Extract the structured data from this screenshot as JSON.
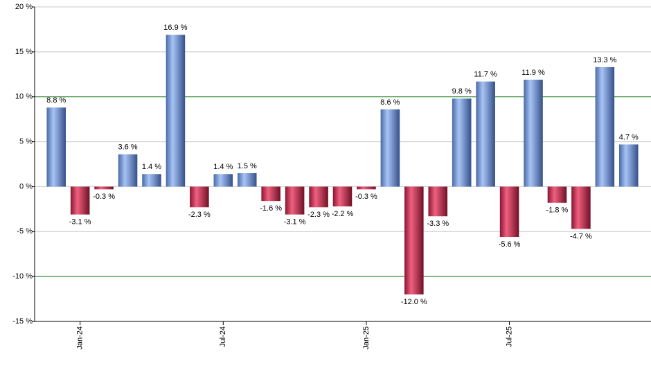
{
  "chart_data": {
    "type": "bar",
    "categories": [
      null,
      "Jan-24",
      null,
      null,
      null,
      null,
      null,
      "Jul-24",
      null,
      null,
      null,
      null,
      null,
      "Jan-25",
      null,
      null,
      null,
      null,
      null,
      "Jul-25",
      null,
      null,
      null,
      null,
      null
    ],
    "values": [
      8.8,
      -3.1,
      -0.3,
      3.6,
      1.4,
      16.9,
      -2.3,
      1.4,
      1.5,
      -1.6,
      -3.1,
      -2.3,
      -2.2,
      -0.3,
      8.6,
      -12.0,
      -3.3,
      9.8,
      11.7,
      -5.6,
      11.9,
      -1.8,
      -4.7,
      13.3,
      4.7
    ],
    "value_labels": [
      "8.8 %",
      "-3.1 %",
      "-0.3 %",
      "3.6 %",
      "1.4 %",
      "16.9 %",
      "-2.3 %",
      "1.4 %",
      "1.5 %",
      "-1.6 %",
      "-3.1 %",
      "-2.3 %",
      "-2.2 %",
      "-0.3 %",
      "8.6 %",
      "-12.0 %",
      "-3.3 %",
      "9.8 %",
      "11.7 %",
      "-5.6 %",
      "11.9 %",
      "-1.8 %",
      "-4.7 %",
      "13.3 %",
      "4.7 %"
    ],
    "positive_color": "#7a9fe0",
    "negative_color": "#c8304f",
    "ylim": [
      -15,
      20
    ],
    "yticks": [
      {
        "value": -15,
        "label": "-15 %"
      },
      {
        "value": -10,
        "label": "-10 %"
      },
      {
        "value": -5,
        "label": "-5 %"
      },
      {
        "value": 0,
        "label": "0 %"
      },
      {
        "value": 5,
        "label": "5 %"
      },
      {
        "value": 10,
        "label": "10 %"
      },
      {
        "value": 15,
        "label": "15 %"
      },
      {
        "value": 20,
        "label": "20 %"
      }
    ],
    "grid": true,
    "highlight_lines": [
      10,
      -10
    ],
    "highlight_color": "#1a7a1a"
  }
}
